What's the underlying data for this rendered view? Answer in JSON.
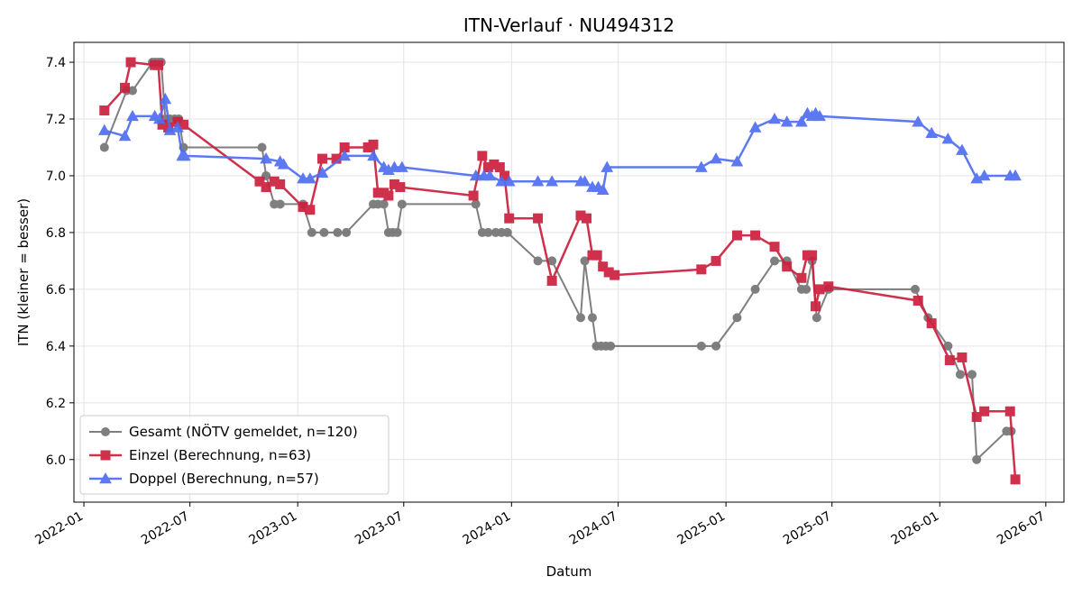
{
  "chart_data": {
    "type": "line",
    "title": "ITN-Verlauf · NU494312",
    "xlabel": "Datum",
    "ylabel": "ITN  (kleiner = besser)",
    "ylim": [
      5.85,
      7.47
    ],
    "xlim": [
      "2021-12-15",
      "2026-08-01"
    ],
    "grid": true,
    "legend_position": "lower-left",
    "x_ticks": [
      "2022-01",
      "2022-07",
      "2023-01",
      "2023-07",
      "2024-01",
      "2024-07",
      "2025-01",
      "2025-07",
      "2026-01",
      "2026-07"
    ],
    "y_ticks": [
      "6.0",
      "6.2",
      "6.4",
      "6.6",
      "6.8",
      "7.0",
      "7.2",
      "7.4"
    ],
    "series": [
      {
        "name": "Gesamt (NÖTV gemeldet, n=120)",
        "color": "#555555",
        "marker": "circle",
        "points": [
          [
            "2022-02-05",
            7.1
          ],
          [
            "2022-03-15",
            7.3
          ],
          [
            "2022-03-25",
            7.3
          ],
          [
            "2022-04-28",
            7.4
          ],
          [
            "2022-05-03",
            7.4
          ],
          [
            "2022-05-08",
            7.4
          ],
          [
            "2022-05-13",
            7.4
          ],
          [
            "2022-05-20",
            7.2
          ],
          [
            "2022-05-28",
            7.2
          ],
          [
            "2022-06-05",
            7.2
          ],
          [
            "2022-06-12",
            7.2
          ],
          [
            "2022-06-20",
            7.1
          ],
          [
            "2022-11-01",
            7.1
          ],
          [
            "2022-11-08",
            7.0
          ],
          [
            "2022-11-22",
            6.9
          ],
          [
            "2022-12-02",
            6.9
          ],
          [
            "2023-01-10",
            6.9
          ],
          [
            "2023-01-25",
            6.8
          ],
          [
            "2023-02-15",
            6.8
          ],
          [
            "2023-03-10",
            6.8
          ],
          [
            "2023-03-25",
            6.8
          ],
          [
            "2023-05-10",
            6.9
          ],
          [
            "2023-05-18",
            6.9
          ],
          [
            "2023-05-28",
            6.9
          ],
          [
            "2023-06-05",
            6.8
          ],
          [
            "2023-06-12",
            6.8
          ],
          [
            "2023-06-20",
            6.8
          ],
          [
            "2023-06-28",
            6.9
          ],
          [
            "2023-11-01",
            6.9
          ],
          [
            "2023-11-12",
            6.8
          ],
          [
            "2023-11-22",
            6.8
          ],
          [
            "2023-12-05",
            6.8
          ],
          [
            "2023-12-15",
            6.8
          ],
          [
            "2023-12-25",
            6.8
          ],
          [
            "2024-02-15",
            6.7
          ],
          [
            "2024-03-10",
            6.7
          ],
          [
            "2024-04-28",
            6.5
          ],
          [
            "2024-05-05",
            6.7
          ],
          [
            "2024-05-18",
            6.5
          ],
          [
            "2024-05-25",
            6.4
          ],
          [
            "2024-06-02",
            6.4
          ],
          [
            "2024-06-10",
            6.4
          ],
          [
            "2024-06-18",
            6.4
          ],
          [
            "2024-11-20",
            6.4
          ],
          [
            "2024-12-15",
            6.4
          ],
          [
            "2025-01-20",
            6.5
          ],
          [
            "2025-02-20",
            6.6
          ],
          [
            "2025-03-25",
            6.7
          ],
          [
            "2025-04-15",
            6.7
          ],
          [
            "2025-05-10",
            6.6
          ],
          [
            "2025-05-18",
            6.6
          ],
          [
            "2025-05-28",
            6.7
          ],
          [
            "2025-06-05",
            6.5
          ],
          [
            "2025-06-25",
            6.6
          ],
          [
            "2025-11-20",
            6.6
          ],
          [
            "2025-12-12",
            6.5
          ],
          [
            "2026-01-15",
            6.4
          ],
          [
            "2026-02-05",
            6.3
          ],
          [
            "2026-02-25",
            6.3
          ],
          [
            "2026-03-05",
            6.0
          ],
          [
            "2026-04-25",
            6.1
          ],
          [
            "2026-05-03",
            6.1
          ]
        ]
      },
      {
        "name": "Einzel (Berechnung, n=63)",
        "color": "#cc1f3d",
        "marker": "square",
        "points": [
          [
            "2022-02-05",
            7.23
          ],
          [
            "2022-03-12",
            7.31
          ],
          [
            "2022-03-22",
            7.4
          ],
          [
            "2022-05-02",
            7.39
          ],
          [
            "2022-05-08",
            7.39
          ],
          [
            "2022-05-15",
            7.18
          ],
          [
            "2022-05-25",
            7.17
          ],
          [
            "2022-06-10",
            7.19
          ],
          [
            "2022-06-20",
            7.18
          ],
          [
            "2022-10-28",
            6.98
          ],
          [
            "2022-11-08",
            6.96
          ],
          [
            "2022-11-22",
            6.98
          ],
          [
            "2022-12-02",
            6.97
          ],
          [
            "2023-01-10",
            6.89
          ],
          [
            "2023-01-22",
            6.88
          ],
          [
            "2023-02-12",
            7.06
          ],
          [
            "2023-03-08",
            7.06
          ],
          [
            "2023-03-22",
            7.1
          ],
          [
            "2023-05-01",
            7.1
          ],
          [
            "2023-05-10",
            7.11
          ],
          [
            "2023-05-18",
            6.94
          ],
          [
            "2023-05-28",
            6.94
          ],
          [
            "2023-06-05",
            6.93
          ],
          [
            "2023-06-15",
            6.97
          ],
          [
            "2023-06-25",
            6.96
          ],
          [
            "2023-10-28",
            6.93
          ],
          [
            "2023-11-12",
            7.07
          ],
          [
            "2023-11-22",
            7.03
          ],
          [
            "2023-12-02",
            7.04
          ],
          [
            "2023-12-12",
            7.03
          ],
          [
            "2023-12-20",
            7.0
          ],
          [
            "2023-12-28",
            6.85
          ],
          [
            "2024-02-15",
            6.85
          ],
          [
            "2024-03-10",
            6.63
          ],
          [
            "2024-04-28",
            6.86
          ],
          [
            "2024-05-08",
            6.85
          ],
          [
            "2024-05-18",
            6.72
          ],
          [
            "2024-05-26",
            6.72
          ],
          [
            "2024-06-05",
            6.68
          ],
          [
            "2024-06-15",
            6.66
          ],
          [
            "2024-06-25",
            6.65
          ],
          [
            "2024-11-20",
            6.67
          ],
          [
            "2024-12-15",
            6.7
          ],
          [
            "2025-01-20",
            6.79
          ],
          [
            "2025-02-20",
            6.79
          ],
          [
            "2025-03-25",
            6.75
          ],
          [
            "2025-04-15",
            6.68
          ],
          [
            "2025-05-10",
            6.64
          ],
          [
            "2025-05-20",
            6.72
          ],
          [
            "2025-05-28",
            6.72
          ],
          [
            "2025-06-03",
            6.54
          ],
          [
            "2025-06-10",
            6.6
          ],
          [
            "2025-06-25",
            6.61
          ],
          [
            "2025-11-25",
            6.56
          ],
          [
            "2025-12-18",
            6.48
          ],
          [
            "2026-01-18",
            6.35
          ],
          [
            "2026-02-08",
            6.36
          ],
          [
            "2026-03-05",
            6.15
          ],
          [
            "2026-03-18",
            6.17
          ],
          [
            "2026-05-01",
            6.17
          ],
          [
            "2026-05-10",
            5.93
          ]
        ]
      },
      {
        "name": "Doppel (Berechnung, n=57)",
        "color": "#4f6ef2",
        "marker": "triangle",
        "points": [
          [
            "2022-02-05",
            7.16
          ],
          [
            "2022-03-12",
            7.14
          ],
          [
            "2022-03-25",
            7.21
          ],
          [
            "2022-05-02",
            7.21
          ],
          [
            "2022-05-10",
            7.2
          ],
          [
            "2022-05-20",
            7.27
          ],
          [
            "2022-05-28",
            7.16
          ],
          [
            "2022-06-10",
            7.17
          ],
          [
            "2022-06-18",
            7.07
          ],
          [
            "2022-06-22",
            7.07
          ],
          [
            "2022-11-08",
            7.06
          ],
          [
            "2022-12-02",
            7.05
          ],
          [
            "2022-12-08",
            7.04
          ],
          [
            "2023-01-10",
            6.99
          ],
          [
            "2023-01-22",
            6.99
          ],
          [
            "2023-02-12",
            7.01
          ],
          [
            "2023-03-22",
            7.07
          ],
          [
            "2023-05-10",
            7.07
          ],
          [
            "2023-05-28",
            7.03
          ],
          [
            "2023-06-05",
            7.02
          ],
          [
            "2023-06-15",
            7.03
          ],
          [
            "2023-06-28",
            7.03
          ],
          [
            "2023-11-01",
            7.0
          ],
          [
            "2023-11-15",
            7.0
          ],
          [
            "2023-11-25",
            7.0
          ],
          [
            "2023-12-15",
            6.98
          ],
          [
            "2023-12-28",
            6.98
          ],
          [
            "2024-02-15",
            6.98
          ],
          [
            "2024-03-10",
            6.98
          ],
          [
            "2024-04-28",
            6.98
          ],
          [
            "2024-05-05",
            6.98
          ],
          [
            "2024-05-18",
            6.96
          ],
          [
            "2024-05-28",
            6.96
          ],
          [
            "2024-06-05",
            6.95
          ],
          [
            "2024-06-12",
            7.03
          ],
          [
            "2024-11-20",
            7.03
          ],
          [
            "2024-12-15",
            7.06
          ],
          [
            "2025-01-20",
            7.05
          ],
          [
            "2025-02-20",
            7.17
          ],
          [
            "2025-03-25",
            7.2
          ],
          [
            "2025-04-15",
            7.19
          ],
          [
            "2025-05-10",
            7.19
          ],
          [
            "2025-05-20",
            7.22
          ],
          [
            "2025-05-28",
            7.21
          ],
          [
            "2025-06-03",
            7.22
          ],
          [
            "2025-06-10",
            7.21
          ],
          [
            "2025-11-25",
            7.19
          ],
          [
            "2025-12-18",
            7.15
          ],
          [
            "2026-01-15",
            7.13
          ],
          [
            "2026-02-08",
            7.09
          ],
          [
            "2026-03-05",
            6.99
          ],
          [
            "2026-03-18",
            7.0
          ],
          [
            "2026-05-01",
            7.0
          ],
          [
            "2026-05-10",
            7.0
          ]
        ]
      }
    ]
  }
}
